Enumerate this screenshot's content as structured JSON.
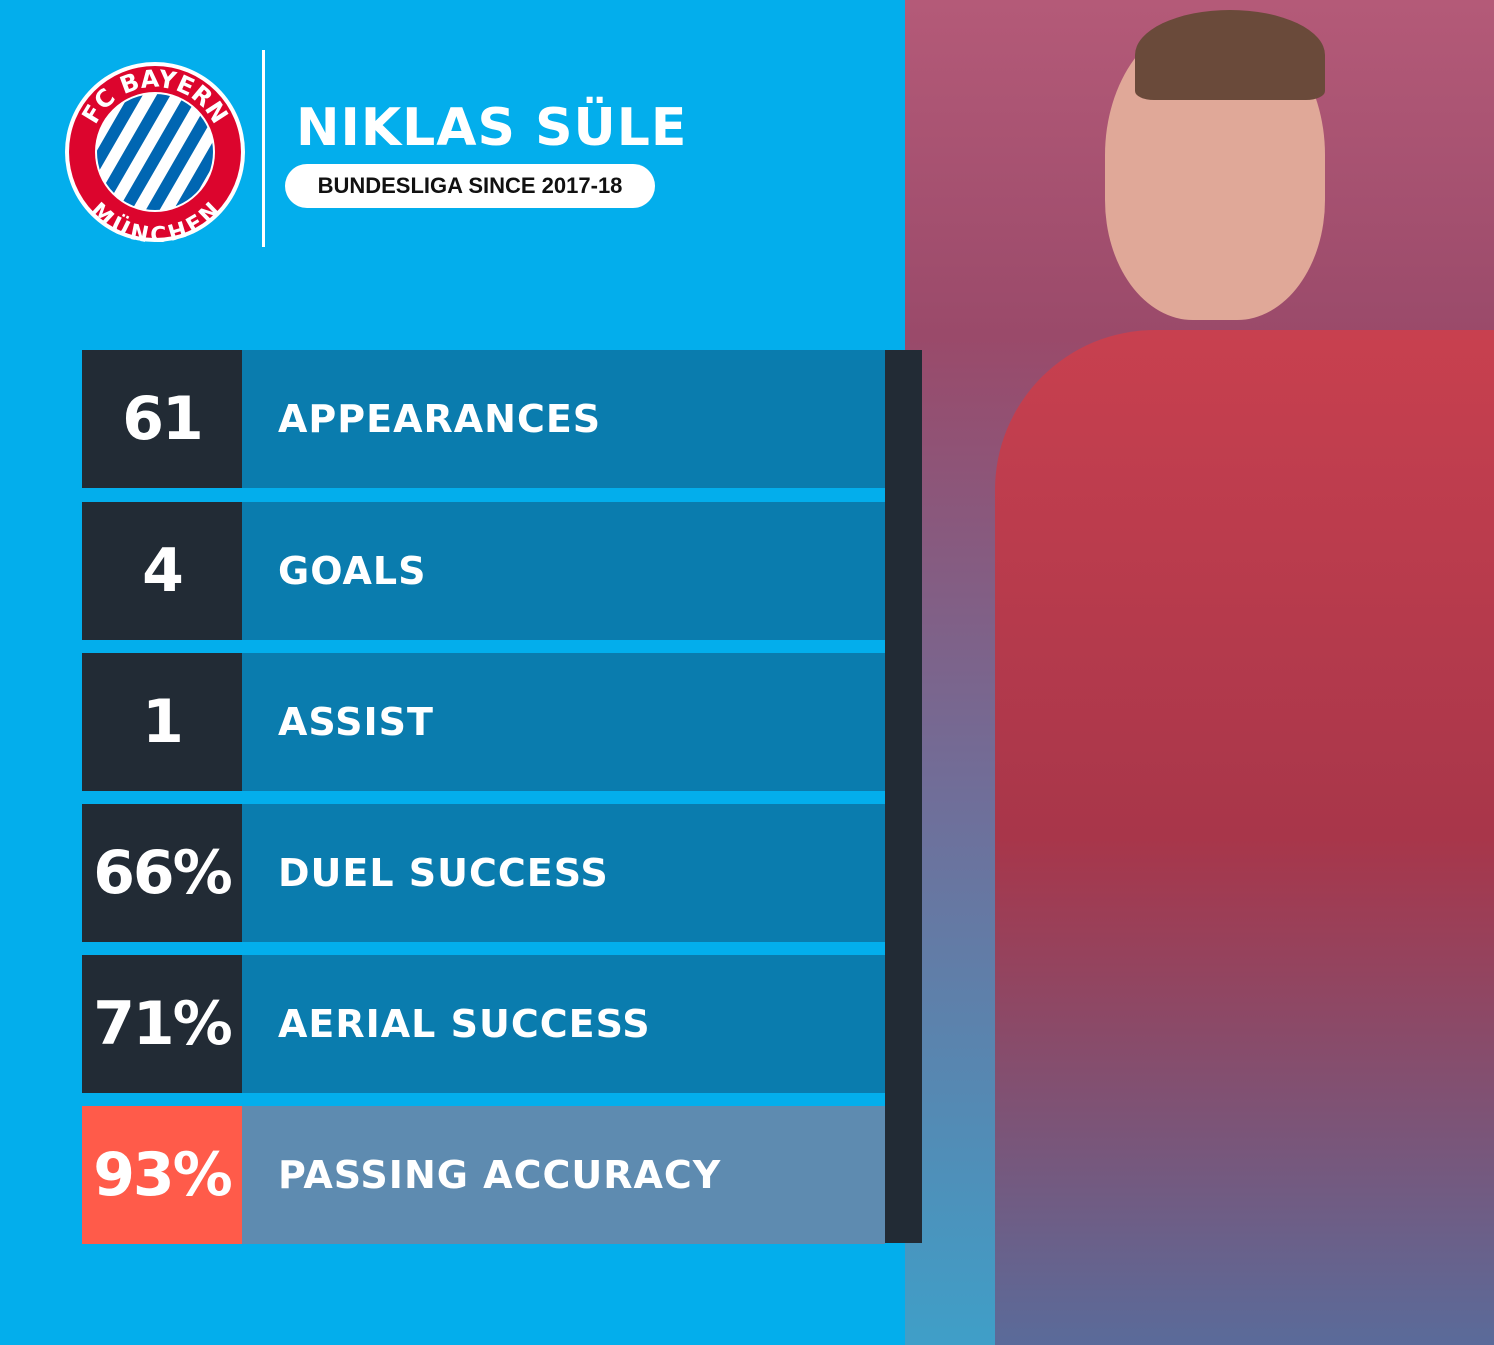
{
  "header": {
    "club_logo_text": "FC BAYERN MÜNCHEN",
    "player_name": "NIKLAS SÜLE",
    "subtitle": "BUNDESLIGA SINCE 2017-18"
  },
  "stats": [
    {
      "value": "61",
      "label": "APPEARANCES"
    },
    {
      "value": "4",
      "label": "GOALS"
    },
    {
      "value": "1",
      "label": "ASSIST"
    },
    {
      "value": "66%",
      "label": "DUEL SUCCESS"
    },
    {
      "value": "71%",
      "label": "AERIAL SUCCESS"
    },
    {
      "value": "93%",
      "label": "PASSING ACCURACY",
      "highlight": true
    }
  ],
  "colors": {
    "background": "#03aeec",
    "row": "#0a7cae",
    "dark": "#222b35",
    "highlight": "#ff5b4a",
    "highlight_row": "#5e8bb0",
    "club_red": "#dc052d",
    "club_blue": "#0066b2"
  }
}
